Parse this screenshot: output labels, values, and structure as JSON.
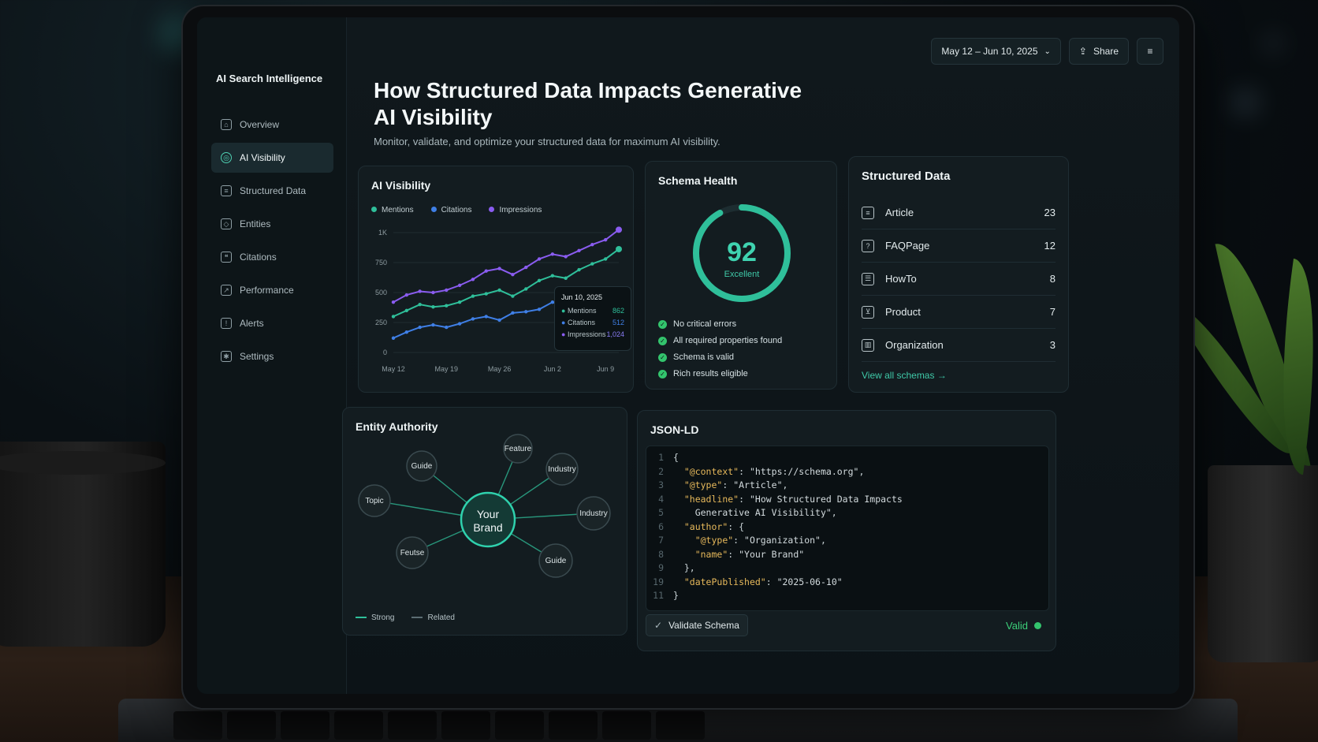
{
  "brand": "AI Search Intelligence",
  "sidebar": {
    "items": [
      {
        "label": "Overview",
        "icon": "home-icon"
      },
      {
        "label": "AI Visibility",
        "icon": "target-icon",
        "active": true
      },
      {
        "label": "Structured Data",
        "icon": "document-icon"
      },
      {
        "label": "Entities",
        "icon": "entity-icon"
      },
      {
        "label": "Citations",
        "icon": "citation-icon"
      },
      {
        "label": "Performance",
        "icon": "trend-icon"
      },
      {
        "label": "Alerts",
        "icon": "bell-icon"
      },
      {
        "label": "Settings",
        "icon": "gear-icon"
      }
    ]
  },
  "header": {
    "title": "How Structured Data Impacts Generative AI Visibility",
    "subtitle": "Monitor, validate, and optimize your structured data for maximum AI visibility.",
    "date_range": "May 12 – Jun 10, 2025",
    "share_label": "Share"
  },
  "visibility": {
    "title": "AI Visibility",
    "legend": [
      "Mentions",
      "Citations",
      "Impressions"
    ],
    "tooltip": {
      "date": "Jun 10, 2025",
      "rows": [
        {
          "label": "Mentions",
          "value": "862"
        },
        {
          "label": "Citations",
          "value": "512"
        },
        {
          "label": "Impressions",
          "value": "1,024"
        }
      ]
    }
  },
  "chart_data": {
    "type": "line",
    "x": [
      "May 12",
      "May 14",
      "May 16",
      "May 17",
      "May 19",
      "May 21",
      "May 22",
      "May 24",
      "May 26",
      "May 28",
      "May 29",
      "May 31",
      "Jun 2",
      "Jun 4",
      "Jun 5",
      "Jun 7",
      "Jun 9",
      "Jun 10"
    ],
    "x_ticks": [
      "May 12",
      "May 19",
      "May 26",
      "Jun 2",
      "Jun 9"
    ],
    "y_ticks": [
      "0",
      "250",
      "500",
      "750",
      "1K"
    ],
    "ylim": [
      0,
      1000
    ],
    "colors": {
      "Mentions": "#2fbf9a",
      "Citations": "#3f7fe6",
      "Impressions": "#8a5cf0"
    },
    "series": [
      {
        "name": "Impressions",
        "values": [
          420,
          480,
          510,
          500,
          520,
          560,
          610,
          680,
          700,
          650,
          710,
          780,
          820,
          800,
          850,
          900,
          940,
          1024
        ]
      },
      {
        "name": "Mentions",
        "values": [
          300,
          350,
          400,
          380,
          390,
          420,
          470,
          490,
          520,
          470,
          530,
          600,
          640,
          620,
          690,
          740,
          780,
          862
        ]
      },
      {
        "name": "Citations",
        "values": [
          120,
          170,
          210,
          230,
          210,
          240,
          280,
          300,
          270,
          330,
          340,
          360,
          420,
          380,
          440,
          460,
          480,
          512
        ]
      }
    ]
  },
  "schema_health": {
    "title": "Schema Health",
    "score": "92",
    "score_fraction": 0.92,
    "rating": "Excellent",
    "checks": [
      "No critical errors",
      "All required properties found",
      "Schema is valid",
      "Rich results eligible"
    ]
  },
  "structured_data": {
    "title": "Structured Data",
    "rows": [
      {
        "label": "Article",
        "count": "23",
        "icon": "article-icon"
      },
      {
        "label": "FAQPage",
        "count": "12",
        "icon": "question-icon"
      },
      {
        "label": "HowTo",
        "count": "8",
        "icon": "list-icon"
      },
      {
        "label": "Product",
        "count": "7",
        "icon": "cart-icon"
      },
      {
        "label": "Organization",
        "count": "3",
        "icon": "building-icon"
      }
    ],
    "view_all": "View all schemas →"
  },
  "entity_authority": {
    "title": "Entity Authority",
    "center": [
      "Your",
      "Brand"
    ],
    "nodes": [
      "Guide",
      "Feature",
      "Industry",
      "Topic",
      "Industry",
      "Feutse",
      "Guide"
    ],
    "legend": [
      "Strong",
      "Related"
    ]
  },
  "jsonld": {
    "title": "JSON-LD",
    "line_numbers": [
      "1",
      "2",
      "3",
      "4",
      "5",
      "6",
      "7",
      "8",
      "9",
      "19",
      "11"
    ],
    "lines": [
      [
        "{"
      ],
      [
        "  ",
        "\"@context\"",
        ": ",
        "\"https://schema.org\"",
        ","
      ],
      [
        "  ",
        "\"@type\"",
        ": ",
        "\"Article\"",
        ","
      ],
      [
        "  ",
        "\"headline\"",
        ": ",
        "\"How Structured Data Impacts",
        ""
      ],
      [
        "    ",
        "",
        "",
        "Generative AI Visibility\"",
        ","
      ],
      [
        "  ",
        "\"author\"",
        ": {",
        "",
        ""
      ],
      [
        "    ",
        "\"@type\"",
        ": ",
        "\"Organization\"",
        ","
      ],
      [
        "    ",
        "\"name\"",
        ": ",
        "\"Your Brand\"",
        ""
      ],
      [
        "  },"
      ],
      [
        "  ",
        "\"datePublished\"",
        ": ",
        "\"2025-06-10\"",
        ""
      ],
      [
        "}"
      ]
    ],
    "validate_label": "Validate Schema",
    "status": "Valid"
  }
}
